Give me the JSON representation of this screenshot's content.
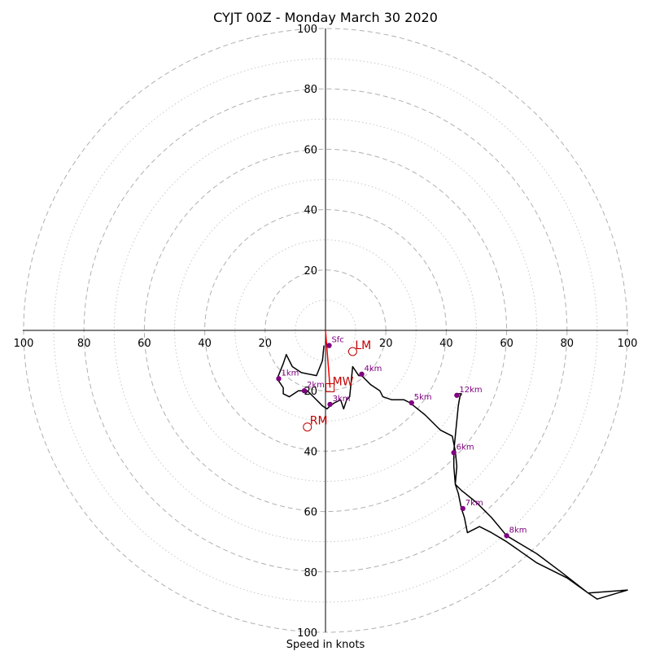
{
  "chart_data": {
    "type": "scatter",
    "subtype": "hodograph",
    "title": "CYJT 00Z - Monday March 30 2020",
    "xlabel": "Speed in knots",
    "ylabel": "",
    "xlim": [
      -100,
      100
    ],
    "ylim": [
      -100,
      100
    ],
    "ring_major": [
      20,
      40,
      60,
      80,
      100
    ],
    "ring_minor": [
      10,
      30,
      50,
      70,
      90
    ],
    "tick_values": [
      20,
      40,
      60,
      80,
      100
    ],
    "grid": true,
    "hodograph_line": [
      [
        -0.5,
        -5
      ],
      [
        -1,
        -10
      ],
      [
        -3,
        -15
      ],
      [
        -8,
        -14
      ],
      [
        -11,
        -12
      ],
      [
        -13,
        -8
      ],
      [
        -14,
        -11
      ],
      [
        -16,
        -16
      ],
      [
        -14,
        -19
      ],
      [
        -14,
        -21
      ],
      [
        -12,
        -22
      ],
      [
        -9,
        -20
      ],
      [
        -7,
        -20
      ],
      [
        -6,
        -20
      ],
      [
        -4,
        -22
      ],
      [
        -1,
        -25
      ],
      [
        0.5,
        -26
      ],
      [
        1.5,
        -25
      ],
      [
        3,
        -24
      ],
      [
        5,
        -23
      ],
      [
        6,
        -26
      ],
      [
        7,
        -23
      ],
      [
        8,
        -22
      ],
      [
        9,
        -12
      ],
      [
        11,
        -15
      ],
      [
        12,
        -15
      ],
      [
        13,
        -16
      ],
      [
        15,
        -18
      ],
      [
        18,
        -20
      ],
      [
        19,
        -22
      ],
      [
        22,
        -23
      ],
      [
        26,
        -23
      ],
      [
        28,
        -24
      ],
      [
        33,
        -28
      ],
      [
        38,
        -33
      ],
      [
        42,
        -35
      ],
      [
        43,
        -40
      ],
      [
        43.5,
        -45
      ],
      [
        43,
        -51
      ],
      [
        45,
        -53
      ],
      [
        50,
        -57
      ],
      [
        55,
        -62
      ],
      [
        60,
        -68
      ],
      [
        70,
        -74
      ],
      [
        78,
        -80
      ],
      [
        87,
        -87
      ],
      [
        90,
        -89
      ],
      [
        100,
        -86
      ],
      [
        87,
        -87
      ],
      [
        80,
        -82
      ],
      [
        70,
        -77
      ],
      [
        60,
        -70
      ],
      [
        55,
        -67
      ],
      [
        51,
        -65
      ],
      [
        47,
        -67
      ],
      [
        46,
        -62
      ],
      [
        45,
        -59
      ],
      [
        44,
        -54
      ],
      [
        43,
        -51
      ],
      [
        42.5,
        -45
      ],
      [
        42.5,
        -40
      ],
      [
        43,
        -35
      ],
      [
        44,
        -25
      ],
      [
        44.5,
        -22
      ],
      [
        45,
        -21
      ],
      [
        44,
        -21
      ],
      [
        43.5,
        -21
      ],
      [
        43.3,
        -22
      ]
    ],
    "height_points": [
      {
        "label": "Sfc",
        "u": 1.2,
        "v": -5
      },
      {
        "label": "1km",
        "u": -15.5,
        "v": -16
      },
      {
        "label": "2km",
        "u": -7,
        "v": -20
      },
      {
        "label": "3km",
        "u": 1.5,
        "v": -24.5
      },
      {
        "label": "4km",
        "u": 12,
        "v": -14.5
      },
      {
        "label": "5km",
        "u": 28.5,
        "v": -24
      },
      {
        "label": "6km",
        "u": 42.5,
        "v": -40.5
      },
      {
        "label": "7km",
        "u": 45.5,
        "v": -59
      },
      {
        "label": "8km",
        "u": 60,
        "v": -68
      },
      {
        "label": "12km",
        "u": 43.5,
        "v": -21.5
      }
    ],
    "motion_points": [
      {
        "label": "LM",
        "u": 9,
        "v": -7,
        "marker": "circle"
      },
      {
        "label": "MW",
        "u": 1.5,
        "v": -19,
        "marker": "square"
      },
      {
        "label": "RM",
        "u": -6,
        "v": -32,
        "marker": "circle"
      }
    ],
    "shear_vector": {
      "from": [
        0,
        0
      ],
      "to": [
        1.5,
        -19
      ]
    },
    "colors": {
      "line": "#000000",
      "height_points": "#800080",
      "motion": "#c00000",
      "shear": "#ff0000",
      "ring_major": "#b0b0b0",
      "ring_minor": "#c8c8c8"
    }
  }
}
